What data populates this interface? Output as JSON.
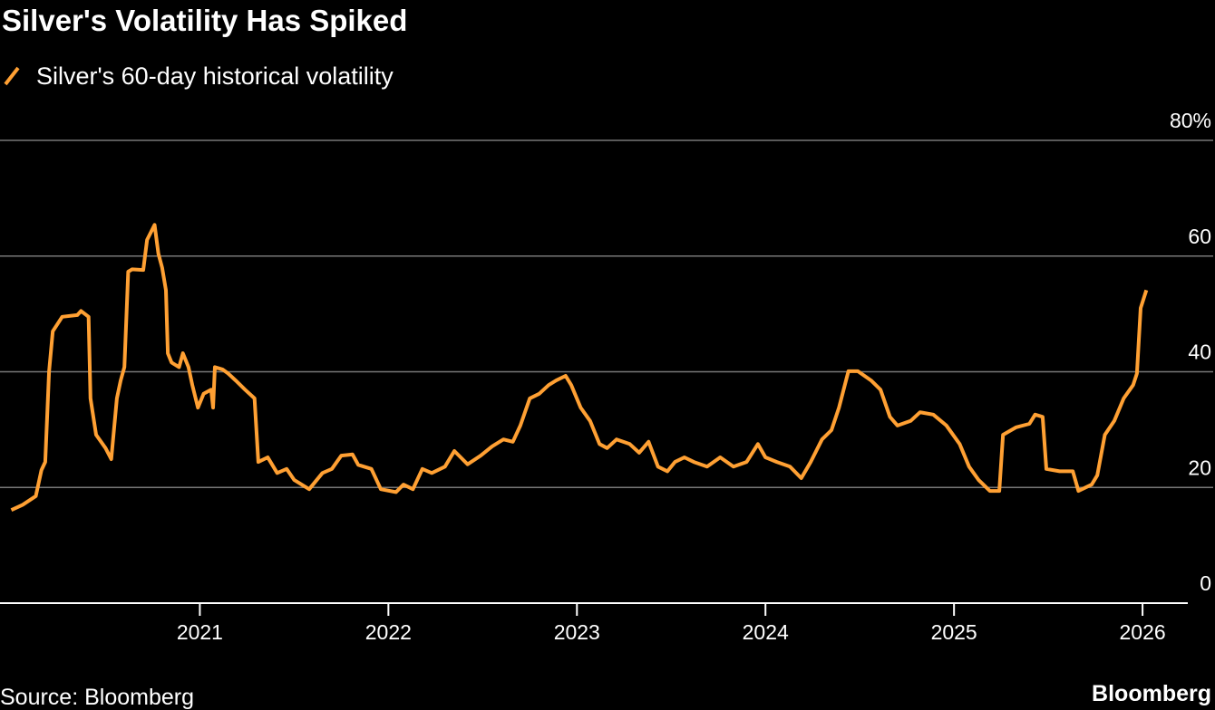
{
  "chart_data": {
    "type": "line",
    "title": "Silver's Volatility Has Spiked",
    "source": "Source: Bloomberg",
    "brand": "Bloomberg",
    "x": [
      2020.0,
      2020.06,
      2020.13,
      2020.16,
      2020.18,
      2020.2,
      2020.22,
      2020.27,
      2020.35,
      2020.37,
      2020.41,
      2020.42,
      2020.45,
      2020.5,
      2020.53,
      2020.56,
      2020.58,
      2020.6,
      2020.62,
      2020.64,
      2020.7,
      2020.72,
      2020.76,
      2020.78,
      2020.8,
      2020.82,
      2020.83,
      2020.85,
      2020.89,
      2020.91,
      2020.94,
      2020.96,
      2020.99,
      2021.02,
      2021.06,
      2021.07,
      2021.08,
      2021.12,
      2021.15,
      2021.19,
      2021.24,
      2021.29,
      2021.31,
      2021.36,
      2021.41,
      2021.46,
      2021.5,
      2021.58,
      2021.65,
      2021.7,
      2021.75,
      2021.81,
      2021.84,
      2021.91,
      2021.96,
      2022.04,
      2022.08,
      2022.13,
      2022.18,
      2022.23,
      2022.3,
      2022.35,
      2022.42,
      2022.49,
      2022.55,
      2022.61,
      2022.66,
      2022.7,
      2022.75,
      2022.8,
      2022.85,
      2022.89,
      2022.94,
      2022.97,
      2023.02,
      2023.07,
      2023.12,
      2023.16,
      2023.21,
      2023.28,
      2023.33,
      2023.38,
      2023.43,
      2023.48,
      2023.52,
      2023.57,
      2023.62,
      2023.69,
      2023.76,
      2023.83,
      2023.9,
      2023.96,
      2024.0,
      2024.06,
      2024.13,
      2024.19,
      2024.24,
      2024.3,
      2024.35,
      2024.39,
      2024.44,
      2024.49,
      2024.56,
      2024.61,
      2024.66,
      2024.7,
      2024.77,
      2024.82,
      2024.89,
      2024.96,
      2025.03,
      2025.08,
      2025.13,
      2025.19,
      2025.24,
      2025.26,
      2025.33,
      2025.4,
      2025.43,
      2025.47,
      2025.49,
      2025.56,
      2025.63,
      2025.66,
      2025.73,
      2025.76,
      2025.8,
      2025.85,
      2025.9,
      2025.95,
      2025.97,
      2025.99,
      2026.02
    ],
    "series": [
      {
        "name": "Silver's 60-day historical volatility",
        "color": "#ffa033",
        "values": [
          16.1,
          17,
          18.5,
          23,
          24.4,
          40,
          47,
          49.5,
          49.8,
          50.5,
          49.5,
          35.4,
          29.1,
          26.8,
          24.9,
          35.4,
          38.5,
          40.8,
          57.3,
          57.7,
          57.6,
          62.8,
          65.4,
          60.4,
          58,
          54.1,
          43.2,
          41.6,
          40.8,
          43.2,
          40.8,
          37.7,
          33.8,
          36.2,
          36.9,
          33.8,
          40.8,
          40.4,
          39.7,
          38.5,
          36.9,
          35.4,
          24.4,
          25.2,
          22.5,
          23.2,
          21.3,
          19.7,
          22.5,
          23.2,
          25.5,
          25.7,
          23.9,
          23.2,
          19.7,
          19.2,
          20.5,
          19.7,
          23.2,
          22.5,
          23.6,
          26.3,
          24,
          25.5,
          27.1,
          28.3,
          27.9,
          30.7,
          35.4,
          36.2,
          37.7,
          38.5,
          39.3,
          37.7,
          33.8,
          31.5,
          27.5,
          26.8,
          28.3,
          27.5,
          26,
          27.9,
          23.6,
          22.8,
          24.4,
          25.2,
          24.4,
          23.6,
          25.2,
          23.6,
          24.4,
          27.5,
          25.2,
          24.4,
          23.6,
          21.6,
          24.4,
          28.3,
          29.9,
          33.8,
          40.1,
          40.1,
          38.5,
          36.9,
          32.2,
          30.7,
          31.5,
          33,
          32.6,
          30.7,
          27.5,
          23.6,
          21.3,
          19.4,
          19.4,
          29.1,
          30.4,
          31,
          32.6,
          32.2,
          23.2,
          22.8,
          22.8,
          19.4,
          20.5,
          22.1,
          29.1,
          31.5,
          35.4,
          37.7,
          39.7,
          51,
          54.1
        ]
      }
    ],
    "xlim": [
      2019.94,
      2026.24
    ],
    "xticks": [
      2021,
      2022,
      2023,
      2024,
      2025,
      2026
    ],
    "ylim": [
      0,
      80
    ],
    "yticks": [
      0,
      20,
      40,
      60,
      {
        "value": 80,
        "label": "80%"
      }
    ],
    "grid": true
  }
}
